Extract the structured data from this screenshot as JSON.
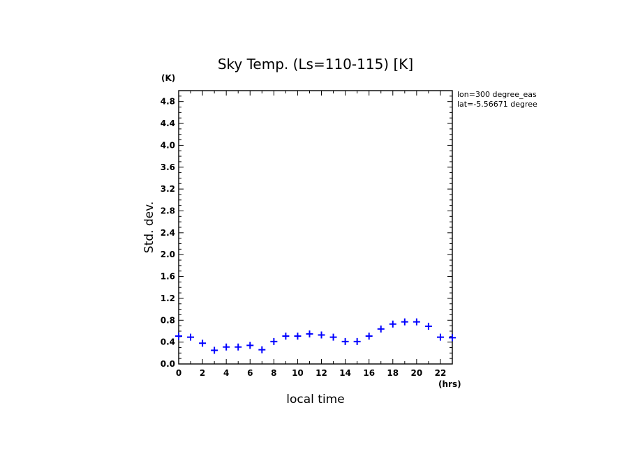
{
  "chart_data": {
    "type": "scatter",
    "title": "Sky Temp. (Ls=110-115) [K]",
    "xlabel": "local time",
    "ylabel": "Std. dev.",
    "x_unit": "(hrs)",
    "y_unit": "(K)",
    "xlim": [
      0,
      23
    ],
    "ylim": [
      0,
      5.0
    ],
    "x_ticks": [
      0,
      2,
      4,
      6,
      8,
      10,
      12,
      14,
      16,
      18,
      20,
      22
    ],
    "x_tick_labels": [
      "0",
      "2",
      "4",
      "6",
      "8",
      "10",
      "12",
      "14",
      "16",
      "18",
      "20",
      "22"
    ],
    "y_ticks": [
      0.0,
      0.4,
      0.8,
      1.2,
      1.6,
      2.0,
      2.4,
      2.8,
      3.2,
      3.6,
      4.0,
      4.4,
      4.8
    ],
    "y_tick_labels": [
      "0.0",
      "0.4",
      "0.8",
      "1.2",
      "1.6",
      "2.0",
      "2.4",
      "2.8",
      "3.2",
      "3.6",
      "4.0",
      "4.4",
      "4.8"
    ],
    "marker": "+",
    "color": "#0000ff",
    "grid": false,
    "annotations": [
      "lon=300 degree_eas",
      "lat=-5.56671 degree"
    ],
    "x": [
      0,
      1,
      2,
      3,
      4,
      5,
      6,
      7,
      8,
      9,
      10,
      11,
      12,
      13,
      14,
      15,
      16,
      17,
      18,
      19,
      20,
      21,
      22,
      23
    ],
    "y": [
      0.51,
      0.49,
      0.38,
      0.25,
      0.31,
      0.31,
      0.34,
      0.26,
      0.41,
      0.51,
      0.51,
      0.55,
      0.53,
      0.49,
      0.41,
      0.41,
      0.51,
      0.64,
      0.73,
      0.77,
      0.77,
      0.69,
      0.49,
      0.48
    ]
  }
}
